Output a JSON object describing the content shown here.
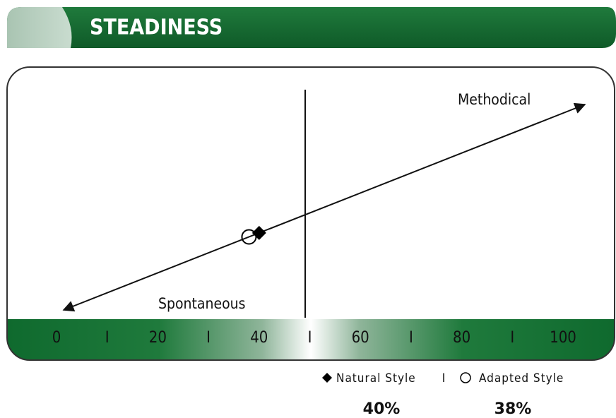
{
  "chart_data": {
    "type": "scatter",
    "title": "STEADINESS",
    "annotations": [
      "Methodical",
      "Spontaneous"
    ],
    "xlim": [
      0,
      100
    ],
    "xticks": [
      0,
      {
        "value": 10,
        "label": "I"
      },
      20,
      {
        "value": 30,
        "label": "I"
      },
      40,
      {
        "value": 50,
        "label": "I"
      },
      60,
      {
        "value": 70,
        "label": "I"
      },
      80,
      {
        "value": 90,
        "label": "I"
      },
      100
    ],
    "legend_separator": "I",
    "series": [
      {
        "name": "Natural Style",
        "marker": "diamond",
        "color": "#000000",
        "values": [
          40
        ],
        "value_labels": [
          "40%"
        ]
      },
      {
        "name": "Adapted Style",
        "marker": "circle",
        "color": "#000000",
        "values": [
          38
        ],
        "value_labels": [
          "38%"
        ]
      }
    ]
  }
}
